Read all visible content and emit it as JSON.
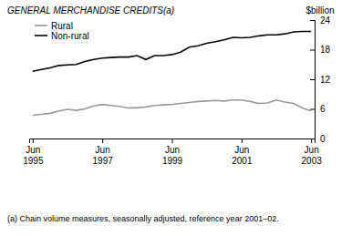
{
  "chart_data": {
    "type": "line",
    "title": "GENERAL MERCHANDISE CREDITS(a)",
    "y_label": "$billion",
    "footnote": "(a) Chain volume measures, seasonally adjusted, reference year 2001–02.",
    "categories": [
      "Jun 1995",
      null,
      null,
      null,
      null,
      null,
      null,
      null,
      "Jun 1997",
      null,
      null,
      null,
      null,
      null,
      null,
      null,
      "Jun 1999",
      null,
      null,
      null,
      null,
      null,
      null,
      null,
      "Jun 2001",
      null,
      null,
      null,
      null,
      null,
      null,
      null,
      "Jun 2003"
    ],
    "series": [
      {
        "name": "Rural",
        "color": "#999999",
        "values": [
          4.7,
          4.9,
          5.1,
          5.6,
          5.9,
          5.7,
          6.0,
          6.6,
          6.9,
          6.7,
          6.5,
          6.2,
          6.2,
          6.4,
          6.7,
          6.8,
          6.9,
          7.1,
          7.3,
          7.5,
          7.6,
          7.7,
          7.6,
          7.8,
          7.8,
          7.5,
          7.1,
          7.2,
          7.8,
          7.4,
          7.1,
          6.2,
          5.6
        ]
      },
      {
        "name": "Non-rural",
        "color": "#000000",
        "values": [
          13.6,
          14.0,
          14.3,
          14.8,
          14.9,
          15.0,
          15.6,
          16.0,
          16.3,
          16.4,
          16.5,
          16.5,
          16.8,
          16.0,
          16.8,
          16.8,
          17.0,
          17.5,
          18.5,
          18.8,
          19.3,
          19.6,
          20.0,
          20.5,
          20.4,
          20.5,
          20.8,
          21.0,
          21.0,
          21.2,
          21.6,
          21.7,
          21.7
        ]
      }
    ],
    "ylim": [
      0,
      24
    ],
    "yticks": [
      0,
      6,
      12,
      18,
      24
    ],
    "grid": false,
    "legend": "upper left"
  }
}
